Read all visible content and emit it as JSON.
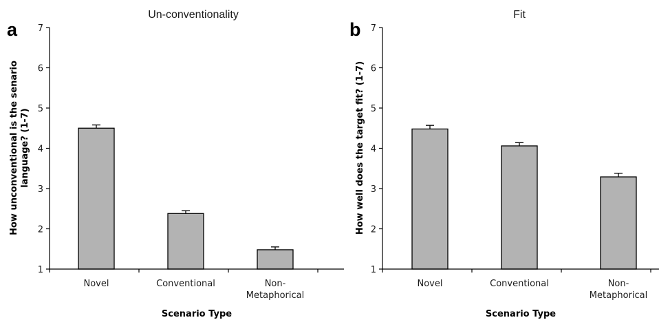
{
  "chart_data": [
    {
      "type": "bar",
      "panel": "a",
      "title": "Un-conventionality",
      "ylabel": "How unconventional is the senario language? (1-7)",
      "ylabel_lines": [
        "How unconventional is the senario",
        "language? (1-7)"
      ],
      "xlabel": "Scenario Type",
      "categories": [
        "Novel",
        "Conventional",
        "Non-Metaphorical"
      ],
      "category_lines": [
        [
          "Novel"
        ],
        [
          "Conventional"
        ],
        [
          "Non-",
          "Metaphorical"
        ]
      ],
      "values": [
        4.5,
        2.38,
        1.48
      ],
      "errors": [
        0.08,
        0.07,
        0.07
      ],
      "ylim": [
        1,
        7
      ],
      "yticks": [
        1,
        2,
        3,
        4,
        5,
        6,
        7
      ],
      "grid": false,
      "bar_color": "#b3b3b3"
    },
    {
      "type": "bar",
      "panel": "b",
      "title": "Fit",
      "ylabel": "How well does the target fit? (1-7)",
      "ylabel_lines": [
        "How well does the target fit? (1-7)"
      ],
      "xlabel": "Scenario Type",
      "categories": [
        "Novel",
        "Conventional",
        "Non-Metaphorical"
      ],
      "category_lines": [
        [
          "Novel"
        ],
        [
          "Conventional"
        ],
        [
          "Non-",
          "Metaphorical"
        ]
      ],
      "values": [
        4.48,
        4.06,
        3.29
      ],
      "errors": [
        0.09,
        0.08,
        0.09
      ],
      "ylim": [
        1,
        7
      ],
      "yticks": [
        1,
        2,
        3,
        4,
        5,
        6,
        7
      ],
      "grid": false,
      "bar_color": "#b3b3b3"
    }
  ]
}
